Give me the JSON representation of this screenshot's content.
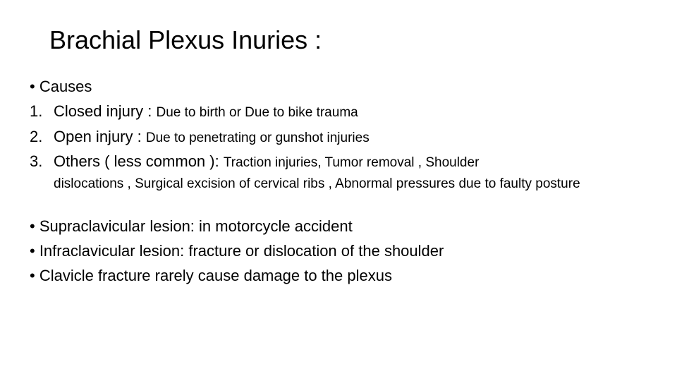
{
  "title": "Brachial Plexus Inuries :",
  "causes_label": "• Causes",
  "items": [
    {
      "num": "1.",
      "main": "Closed injury : ",
      "sub": "Due to birth or Due to bike trauma"
    },
    {
      "num": "2.",
      "main": "Open injury : ",
      "sub": "Due to penetrating or gunshot injuries"
    },
    {
      "num": "3.",
      "main": "Others ( less common ): ",
      "sub": "Traction injuries, Tumor removal , Shoulder"
    }
  ],
  "item3_cont": "dislocations , Surgical excision of cervical ribs , Abnormal pressures due to faulty posture",
  "bullets": [
    "• Supraclavicular lesion: in motorcycle accident",
    "• Infraclavicular lesion: fracture or dislocation of the shoulder",
    "• Clavicle fracture rarely cause damage to the plexus"
  ],
  "colors": {
    "background": "#ffffff",
    "text": "#000000"
  },
  "typography": {
    "title_fontsize": 36,
    "body_fontsize": 22,
    "sub_fontsize": 19,
    "font_family": "Arial"
  }
}
